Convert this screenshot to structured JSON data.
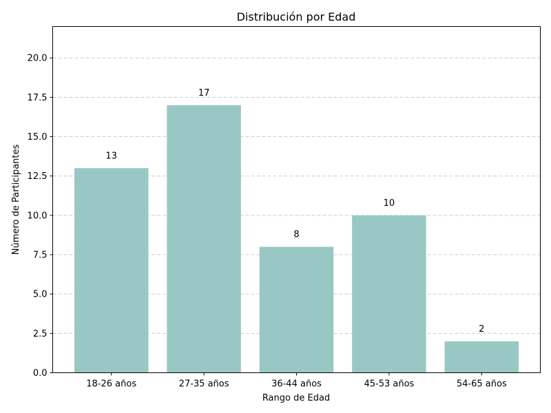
{
  "chart_data": {
    "type": "bar",
    "title": "Distribución por Edad",
    "xlabel": "Rango de Edad",
    "ylabel": "Número de Participantes",
    "categories": [
      "18-26 años",
      "27-35 años",
      "36-44 años",
      "45-53 años",
      "54-65 años"
    ],
    "values": [
      13,
      17,
      8,
      10,
      2
    ],
    "value_labels": [
      "13",
      "17",
      "8",
      "10",
      "2"
    ],
    "ylim": [
      0,
      22
    ],
    "yticks": [
      0.0,
      2.5,
      5.0,
      7.5,
      10.0,
      12.5,
      15.0,
      17.5,
      20.0
    ],
    "ytick_labels": [
      "0.0",
      "2.5",
      "5.0",
      "7.5",
      "10.0",
      "12.5",
      "15.0",
      "17.5",
      "20.0"
    ],
    "grid": "y-dashed",
    "bar_color": "#99c8c4"
  }
}
